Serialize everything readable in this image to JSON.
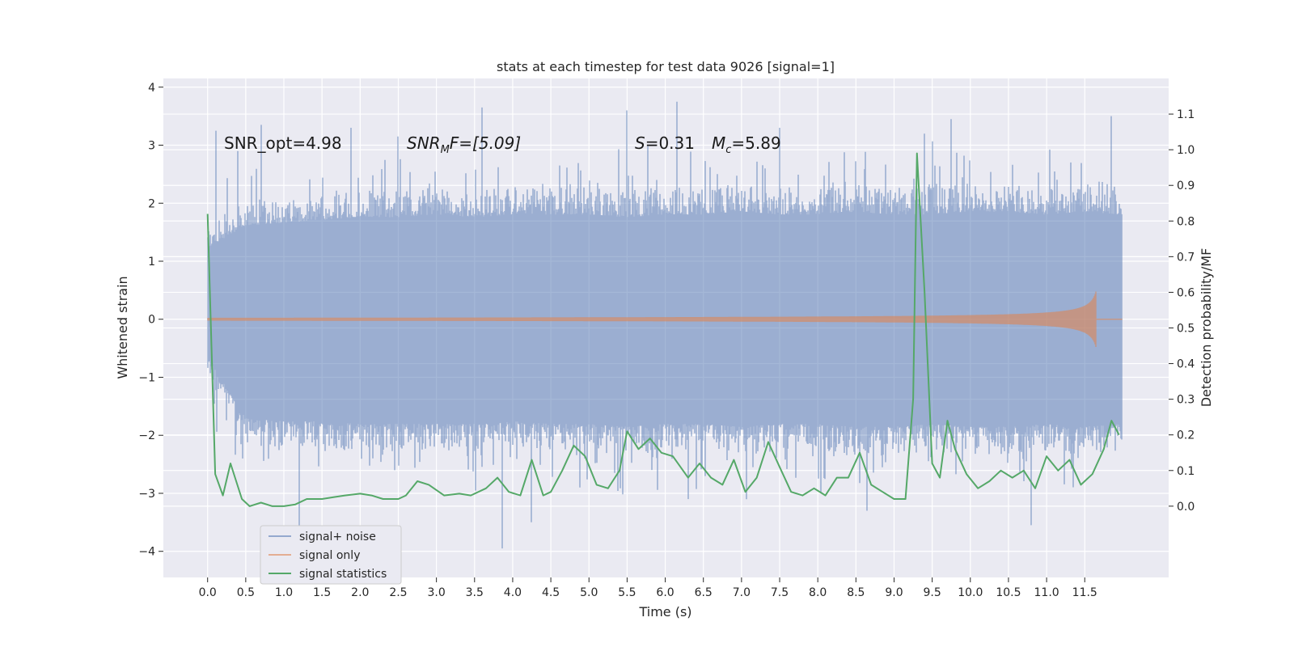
{
  "chart_data": {
    "type": "line",
    "title": "stats at each timestep for test data 9026 [signal=1]",
    "xlabel": "Time (s)",
    "ylabel_left": "Whitened strain",
    "ylabel_right": "Detection probability/MF",
    "xlim": [
      -0.58,
      12.6
    ],
    "ylim_left": [
      -4.45,
      4.15
    ],
    "ylim_right": [
      -0.2,
      1.2
    ],
    "x_ticks": [
      0.0,
      0.5,
      1.0,
      1.5,
      2.0,
      2.5,
      3.0,
      3.5,
      4.0,
      4.5,
      5.0,
      5.5,
      6.0,
      6.5,
      7.0,
      7.5,
      8.0,
      8.5,
      9.0,
      9.5,
      10.0,
      10.5,
      11.0,
      11.5
    ],
    "x_tick_labels": [
      "0.0",
      "0.5",
      "1.0",
      "1.5",
      "2.0",
      "2.5",
      "3.0",
      "3.5",
      "4.0",
      "4.5",
      "5.0",
      "5.5",
      "6.0",
      "6.5",
      "7.0",
      "7.5",
      "8.0",
      "8.5",
      "9.0",
      "9.5",
      "10.0",
      "10.5",
      "11.0",
      "11.5"
    ],
    "y_left_ticks": [
      -4,
      -3,
      -2,
      -1,
      0,
      1,
      2,
      3,
      4
    ],
    "y_left_tick_labels": [
      "−4",
      "−3",
      "−2",
      "−1",
      "0",
      "1",
      "2",
      "3",
      "4"
    ],
    "y_right_ticks": [
      0.0,
      0.1,
      0.2,
      0.3,
      0.4,
      0.5,
      0.6,
      0.7,
      0.8,
      0.9,
      1.0,
      1.1
    ],
    "y_right_tick_labels": [
      "0.0",
      "0.1",
      "0.2",
      "0.3",
      "0.4",
      "0.5",
      "0.6",
      "0.7",
      "0.8",
      "0.9",
      "1.0",
      "1.1"
    ],
    "annotations": {
      "snr_opt": "SNR_opt=4.98",
      "snr_mf_base": "SNR",
      "snr_mf_sub": "M",
      "snr_mf_rest": "F=[5.09]",
      "s_var": "S",
      "s_rest": "=0.31",
      "mc_var": "M",
      "mc_sub": "c",
      "mc_rest": "=5.89"
    },
    "grid": true,
    "legend_position": "lower-left",
    "series": [
      {
        "name": "signal+ noise",
        "color": "#4c72b0",
        "axis": "left",
        "t_range": [
          0.0,
          11.98
        ],
        "envelope_upper": [
          1.3,
          1.7,
          1.75,
          1.8,
          1.85,
          1.85,
          1.9,
          1.85,
          1.9,
          1.9,
          1.9,
          1.85,
          1.9,
          1.9,
          1.95,
          1.9,
          1.9,
          1.95,
          1.9,
          1.9,
          1.95,
          1.95,
          1.9,
          1.95,
          1.9
        ],
        "envelope_lower": [
          -0.7,
          -1.8,
          -1.85,
          -1.85,
          -1.9,
          -1.9,
          -1.9,
          -1.9,
          -1.85,
          -1.9,
          -1.9,
          -1.95,
          -1.9,
          -1.9,
          -1.95,
          -1.9,
          -1.9,
          -1.95,
          -1.95,
          -1.9,
          -1.95,
          -1.95,
          -1.9,
          -1.95,
          -1.9
        ],
        "peaks": [
          [
            0.11,
            3.25
          ],
          [
            0.4,
            2.9
          ],
          [
            0.7,
            3.35
          ],
          [
            1.2,
            -3.7
          ],
          [
            1.88,
            3.3
          ],
          [
            2.5,
            3.15
          ],
          [
            3.6,
            3.65
          ],
          [
            3.86,
            -3.95
          ],
          [
            4.24,
            -3.5
          ],
          [
            5.5,
            3.6
          ],
          [
            6.15,
            3.75
          ],
          [
            6.3,
            -3.1
          ],
          [
            7.5,
            3.3
          ],
          [
            8.65,
            -3.3
          ],
          [
            9.4,
            3.2
          ],
          [
            9.75,
            3.45
          ],
          [
            10.8,
            -3.55
          ],
          [
            11.85,
            3.5
          ]
        ]
      },
      {
        "name": "signal only",
        "color": "#dd8452",
        "axis": "left",
        "t_range": [
          0.0,
          11.98
        ],
        "chirp_end": 11.65,
        "amplitude_at_end": 0.5
      },
      {
        "name": "signal statistics",
        "color": "#55a868",
        "axis": "right",
        "t": [
          0.0,
          0.1,
          0.2,
          0.3,
          0.45,
          0.55,
          0.7,
          0.85,
          1.0,
          1.15,
          1.3,
          1.5,
          1.65,
          1.8,
          2.0,
          2.15,
          2.3,
          2.5,
          2.6,
          2.75,
          2.9,
          3.1,
          3.3,
          3.45,
          3.65,
          3.8,
          3.95,
          4.1,
          4.25,
          4.4,
          4.5,
          4.65,
          4.8,
          4.95,
          5.1,
          5.25,
          5.4,
          5.5,
          5.65,
          5.8,
          5.95,
          6.1,
          6.3,
          6.45,
          6.6,
          6.75,
          6.9,
          7.05,
          7.2,
          7.35,
          7.5,
          7.65,
          7.8,
          7.95,
          8.1,
          8.25,
          8.4,
          8.55,
          8.7,
          8.85,
          9.0,
          9.15,
          9.25,
          9.3,
          9.4,
          9.5,
          9.6,
          9.7,
          9.8,
          9.95,
          10.1,
          10.25,
          10.4,
          10.55,
          10.7,
          10.85,
          11.0,
          11.15,
          11.3,
          11.45,
          11.6,
          11.75,
          11.85,
          11.95
        ],
        "values": [
          0.82,
          0.09,
          0.03,
          0.12,
          0.02,
          0.0,
          0.01,
          0.0,
          0.0,
          0.005,
          0.02,
          0.02,
          0.025,
          0.03,
          0.035,
          0.03,
          0.02,
          0.02,
          0.03,
          0.07,
          0.06,
          0.03,
          0.035,
          0.03,
          0.05,
          0.08,
          0.04,
          0.03,
          0.13,
          0.03,
          0.04,
          0.1,
          0.17,
          0.14,
          0.06,
          0.05,
          0.1,
          0.21,
          0.16,
          0.19,
          0.15,
          0.14,
          0.08,
          0.12,
          0.08,
          0.06,
          0.13,
          0.04,
          0.08,
          0.18,
          0.11,
          0.04,
          0.03,
          0.05,
          0.03,
          0.08,
          0.08,
          0.15,
          0.06,
          0.04,
          0.02,
          0.02,
          0.3,
          0.99,
          0.6,
          0.12,
          0.08,
          0.24,
          0.16,
          0.09,
          0.05,
          0.07,
          0.1,
          0.08,
          0.1,
          0.05,
          0.14,
          0.1,
          0.13,
          0.06,
          0.09,
          0.16,
          0.24,
          0.2
        ]
      }
    ]
  }
}
